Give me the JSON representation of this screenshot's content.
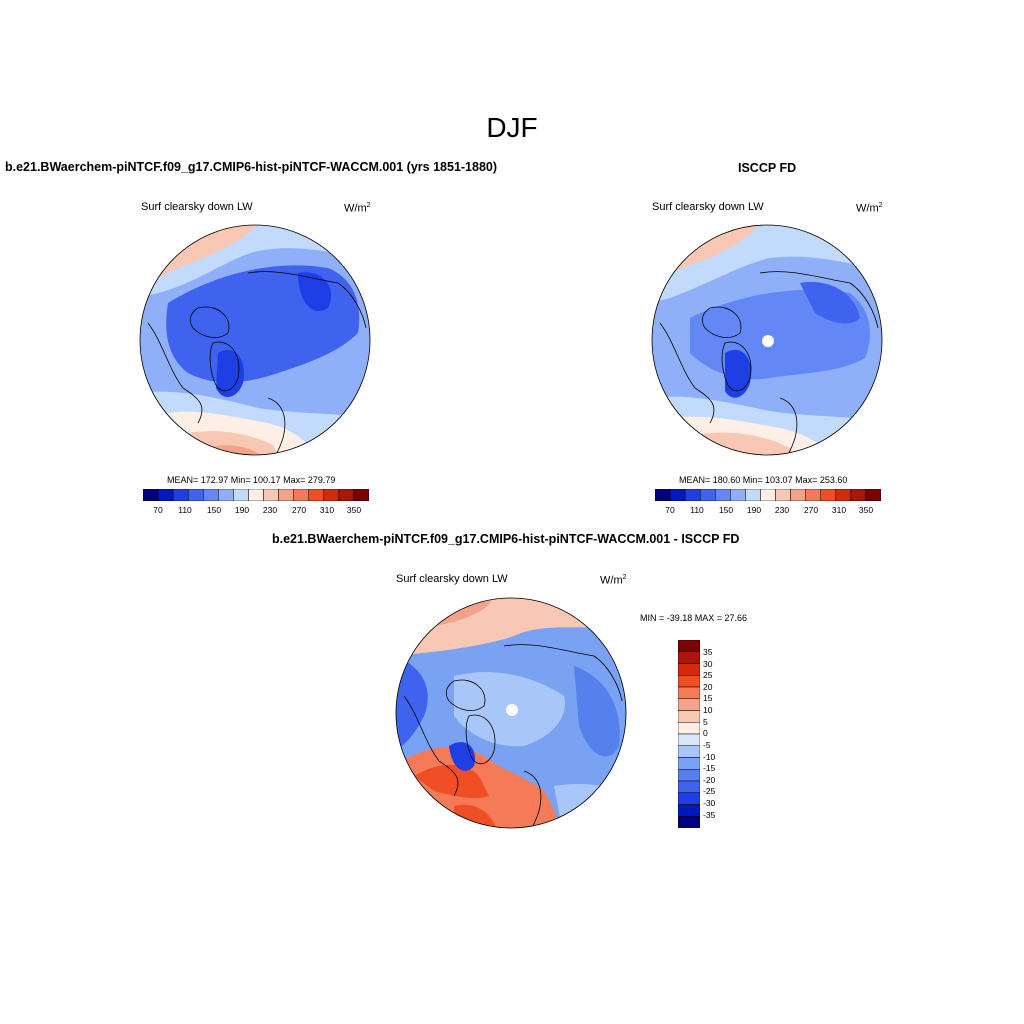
{
  "season": "DJF",
  "panels": {
    "model": {
      "title": "b.e21.BWaerchem-piNTCF.f09_g17.CMIP6-hist-piNTCF-WACCM.001 (yrs 1851-1880)",
      "variable": "Surf clearsky down LW",
      "units": "W/m",
      "units_exp": "2",
      "stats": "MEAN= 172.97  Min= 100.17  Max= 279.79"
    },
    "obs": {
      "title": "ISCCP FD",
      "variable": "Surf clearsky down LW",
      "units": "W/m",
      "units_exp": "2",
      "stats": "MEAN= 180.60  Min= 103.07  Max= 253.60"
    },
    "diff": {
      "title": "b.e21.BWaerchem-piNTCF.f09_g17.CMIP6-hist-piNTCF-WACCM.001 - ISCCP FD",
      "variable": "Surf clearsky down LW",
      "units": "W/m",
      "units_exp": "2",
      "stats": "MIN = -39.18 MAX =  27.66"
    }
  },
  "colors": {
    "abs_scale": [
      "#00007f",
      "#0019bf",
      "#1f3fe6",
      "#3f62ef",
      "#6388f5",
      "#8fb0f9",
      "#c2dafc",
      "#fdeee6",
      "#f8c8b4",
      "#f3a38a",
      "#f47a58",
      "#f04e25",
      "#d32a0e",
      "#a8170a",
      "#7a0403"
    ],
    "diff_scale": [
      "#7a0403",
      "#a8170a",
      "#d32a0e",
      "#f04e25",
      "#f47a58",
      "#f3a38a",
      "#f8c8b4",
      "#fdeee6",
      "#d8e6fb",
      "#a9c6f8",
      "#7aa2f3",
      "#5580ee",
      "#3f62ef",
      "#1f3fe6",
      "#0019bf",
      "#00007f"
    ]
  },
  "chart_data": [
    {
      "type": "heatmap",
      "title": "b.e21.BWaerchem-piNTCF.f09_g17.CMIP6-hist-piNTCF-WACCM.001 (yrs 1851-1880)",
      "subtitle": "Surf clearsky down LW",
      "units": "W/m2",
      "projection": "north polar stereographic",
      "colorbar_levels": [
        70,
        90,
        110,
        130,
        150,
        170,
        190,
        210,
        230,
        250,
        270,
        290,
        310,
        330,
        350
      ],
      "colorbar_tick_labels": [
        "70",
        "110",
        "150",
        "190",
        "230",
        "270",
        "310",
        "350"
      ],
      "mean": 172.97,
      "min": 100.17,
      "max": 279.79
    },
    {
      "type": "heatmap",
      "title": "ISCCP FD",
      "subtitle": "Surf clearsky down LW",
      "units": "W/m2",
      "projection": "north polar stereographic",
      "colorbar_levels": [
        70,
        90,
        110,
        130,
        150,
        170,
        190,
        210,
        230,
        250,
        270,
        290,
        310,
        330,
        350
      ],
      "colorbar_tick_labels": [
        "70",
        "110",
        "150",
        "190",
        "230",
        "270",
        "310",
        "350"
      ],
      "mean": 180.6,
      "min": 103.07,
      "max": 253.6
    },
    {
      "type": "heatmap",
      "title": "b.e21.BWaerchem-piNTCF.f09_g17.CMIP6-hist-piNTCF-WACCM.001 - ISCCP FD",
      "subtitle": "Surf clearsky down LW",
      "units": "W/m2",
      "projection": "north polar stereographic",
      "colorbar_levels": [
        35,
        30,
        25,
        20,
        15,
        10,
        5,
        0,
        -5,
        -10,
        -15,
        -20,
        -25,
        -30,
        -35
      ],
      "colorbar_tick_labels": [
        "35",
        "30",
        "25",
        "20",
        "15",
        "10",
        "5",
        "0",
        "-5",
        "-10",
        "-15",
        "-20",
        "-25",
        "-30",
        "-35"
      ],
      "min": -39.18,
      "max": 27.66
    }
  ]
}
